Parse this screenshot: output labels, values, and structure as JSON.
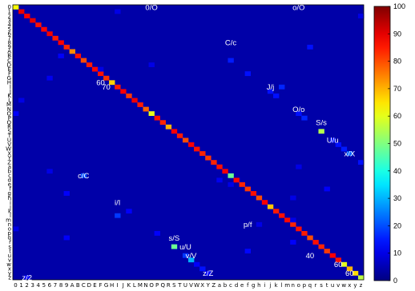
{
  "chart_data": {
    "type": "heatmap",
    "title": "",
    "xlabel": "",
    "ylabel": "",
    "categories": [
      "0",
      "1",
      "2",
      "3",
      "4",
      "5",
      "6",
      "7",
      "8",
      "9",
      "A",
      "B",
      "C",
      "D",
      "E",
      "F",
      "G",
      "H",
      "I",
      "J",
      "K",
      "L",
      "M",
      "N",
      "O",
      "P",
      "Q",
      "R",
      "S",
      "T",
      "U",
      "V",
      "W",
      "X",
      "Y",
      "Z",
      "a",
      "b",
      "c",
      "d",
      "e",
      "f",
      "g",
      "h",
      "i",
      "j",
      "k",
      "l",
      "m",
      "n",
      "o",
      "p",
      "q",
      "r",
      "s",
      "t",
      "u",
      "v",
      "w",
      "x",
      "y",
      "z"
    ],
    "diagonal_values": [
      62,
      90,
      88,
      90,
      86,
      87,
      89,
      85,
      88,
      84,
      74,
      86,
      80,
      85,
      87,
      86,
      83,
      67,
      85,
      88,
      82,
      89,
      85,
      78,
      60,
      86,
      84,
      70,
      88,
      85,
      80,
      88,
      86,
      84,
      82,
      84,
      86,
      88,
      48,
      87,
      84,
      82,
      86,
      80,
      88,
      68,
      85,
      86,
      87,
      84,
      86,
      85,
      80,
      86,
      84,
      82,
      88,
      86,
      60,
      70,
      66,
      56
    ],
    "offdiagonal_cells": [
      {
        "row": "O",
        "col": "0",
        "value": 12
      },
      {
        "row": "o",
        "col": "0",
        "value": 10
      },
      {
        "row": "c",
        "col": "C",
        "value": 20
      },
      {
        "row": "O",
        "col": "o",
        "value": 14
      },
      {
        "row": "s",
        "col": "S",
        "value": 48
      },
      {
        "row": "u",
        "col": "U",
        "value": 18
      },
      {
        "row": "v",
        "col": "V",
        "value": 30
      },
      {
        "row": "x",
        "col": "X",
        "value": 14
      },
      {
        "row": "S",
        "col": "s",
        "value": 55
      },
      {
        "row": "U",
        "col": "u",
        "value": 14
      },
      {
        "row": "V",
        "col": "v",
        "value": 14
      },
      {
        "row": "X",
        "col": "x",
        "value": 22
      },
      {
        "row": "C",
        "col": "c",
        "value": 15
      },
      {
        "row": "J",
        "col": "j",
        "value": 14
      },
      {
        "row": "I",
        "col": "l",
        "value": 16
      },
      {
        "row": "l",
        "col": "I",
        "value": 18
      },
      {
        "row": "P",
        "col": "p",
        "value": 16
      },
      {
        "row": "F",
        "col": "f",
        "value": 14
      },
      {
        "row": "Z",
        "col": "z",
        "value": 14
      },
      {
        "row": "z",
        "col": "2",
        "value": 12
      },
      {
        "row": "2",
        "col": "z",
        "value": 10
      },
      {
        "row": "9",
        "col": "q",
        "value": 14
      },
      {
        "row": "q",
        "col": "9",
        "value": 12
      },
      {
        "row": "W",
        "col": "w",
        "value": 15
      },
      {
        "row": "w",
        "col": "W",
        "value": 12
      },
      {
        "row": "K",
        "col": "k",
        "value": 14
      },
      {
        "row": "k",
        "col": "K",
        "value": 12
      },
      {
        "row": "y",
        "col": "Y",
        "value": 12
      },
      {
        "row": "1",
        "col": "I",
        "value": 10
      },
      {
        "row": "g",
        "col": "9",
        "value": 12
      },
      {
        "row": "e",
        "col": "c",
        "value": 10
      },
      {
        "row": "f",
        "col": "t",
        "value": 12
      },
      {
        "row": "h",
        "col": "n",
        "value": 10
      },
      {
        "row": "r",
        "col": "n",
        "value": 12
      },
      {
        "row": "a",
        "col": "o",
        "value": 10
      },
      {
        "row": "B",
        "col": "8",
        "value": 12
      },
      {
        "row": "D",
        "col": "O",
        "value": 10
      },
      {
        "row": "G",
        "col": "6",
        "value": 11
      },
      {
        "row": "n",
        "col": "h",
        "value": 10
      },
      {
        "row": "t",
        "col": "f",
        "value": 13
      },
      {
        "row": "b",
        "col": "6",
        "value": 10
      },
      {
        "row": "d",
        "col": "a",
        "value": 11
      },
      {
        "row": "m",
        "col": "n",
        "value": 10
      },
      {
        "row": "E",
        "col": "F",
        "value": 10
      },
      {
        "row": "p",
        "col": "P",
        "value": 12
      },
      {
        "row": "L",
        "col": "1",
        "value": 10
      }
    ],
    "annotations": [
      {
        "text": "0/O",
        "row": "0",
        "col": "O"
      },
      {
        "text": "o/O",
        "row": "0",
        "col": "o"
      },
      {
        "text": "C/c",
        "row": "8",
        "col": "c"
      },
      {
        "text": "J/j",
        "row": "I",
        "col": "j"
      },
      {
        "text": "60",
        "row": "H",
        "col": "F"
      },
      {
        "text": "70",
        "row": "I",
        "col": "G"
      },
      {
        "text": "O/o",
        "row": "N",
        "col": "o"
      },
      {
        "text": "S/s",
        "row": "Q",
        "col": "s"
      },
      {
        "text": "U/u",
        "row": "U",
        "col": "u"
      },
      {
        "text": "x/X",
        "row": "X",
        "col": "x"
      },
      {
        "text": "c/C",
        "row": "c",
        "col": "C"
      },
      {
        "text": "i/I",
        "row": "i",
        "col": "I"
      },
      {
        "text": "p/f",
        "row": "n",
        "col": "f"
      },
      {
        "text": "s/S",
        "row": "q",
        "col": "S"
      },
      {
        "text": "u/U",
        "row": "s",
        "col": "U"
      },
      {
        "text": "v/V",
        "row": "u",
        "col": "V"
      },
      {
        "text": "40",
        "row": "u",
        "col": "q"
      },
      {
        "text": "60",
        "row": "w",
        "col": "v"
      },
      {
        "text": "z/Z",
        "row": "y",
        "col": "Y"
      },
      {
        "text": "z/2",
        "row": "z",
        "col": "2"
      },
      {
        "text": "60",
        "row": "y",
        "col": "x"
      }
    ],
    "colorbar": {
      "range": [
        0,
        100
      ],
      "ticks": [
        0,
        10,
        20,
        30,
        40,
        50,
        60,
        70,
        80,
        90,
        100
      ],
      "colormap": "jet"
    },
    "grid": false,
    "legend": "colorbar right"
  }
}
